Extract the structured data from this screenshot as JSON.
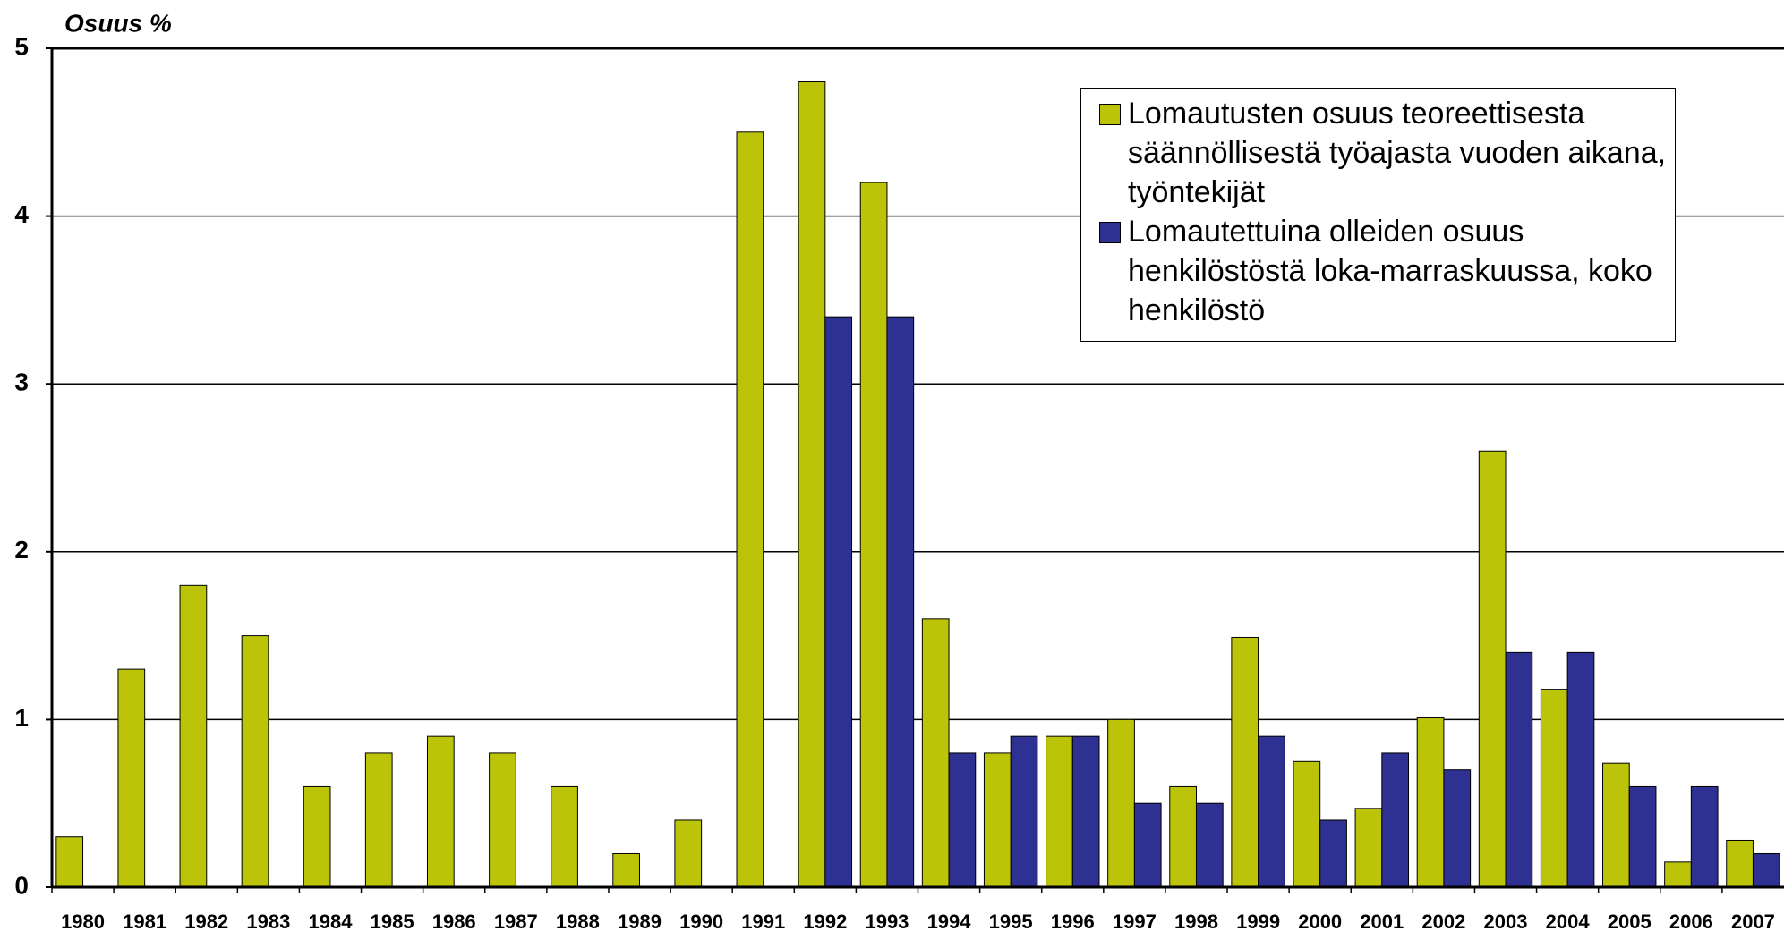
{
  "chart_data": {
    "type": "bar",
    "y_label": "Osuus %",
    "categories": [
      "1980",
      "1981",
      "1982",
      "1983",
      "1984",
      "1985",
      "1986",
      "1987",
      "1988",
      "1989",
      "1990",
      "1991",
      "1992",
      "1993",
      "1994",
      "1995",
      "1996",
      "1997",
      "1998",
      "1999",
      "2000",
      "2001",
      "2002",
      "2003",
      "2004",
      "2005",
      "2006",
      "2007"
    ],
    "series": [
      {
        "name": "Lomautusten osuus teoreettisesta säännöllisestä työajasta vuoden aikana, työntekijät",
        "color": "#bcc40a",
        "values": [
          0.3,
          1.3,
          1.8,
          1.5,
          0.6,
          0.8,
          0.9,
          0.8,
          0.6,
          0.2,
          0.4,
          4.5,
          4.8,
          4.2,
          1.6,
          0.8,
          0.9,
          1.0,
          0.6,
          1.49,
          0.75,
          0.47,
          1.01,
          2.6,
          1.18,
          0.74,
          0.15,
          0.28
        ]
      },
      {
        "name": "Lomautettuina olleiden osuus henkilöstöstä loka-marraskuussa, koko henkilöstö",
        "color": "#2e3192",
        "values": [
          0,
          0,
          0,
          0,
          0,
          0,
          0,
          0,
          0,
          0,
          0,
          0,
          3.4,
          3.4,
          0.8,
          0.9,
          0.9,
          0.5,
          0.5,
          0.9,
          0.4,
          0.8,
          0.7,
          1.4,
          1.4,
          0.6,
          0.6,
          0.2
        ]
      }
    ],
    "ylim": [
      0,
      5
    ],
    "yticks": [
      0,
      1,
      2,
      3,
      4,
      5
    ],
    "grid": true,
    "legend": "upper right"
  }
}
